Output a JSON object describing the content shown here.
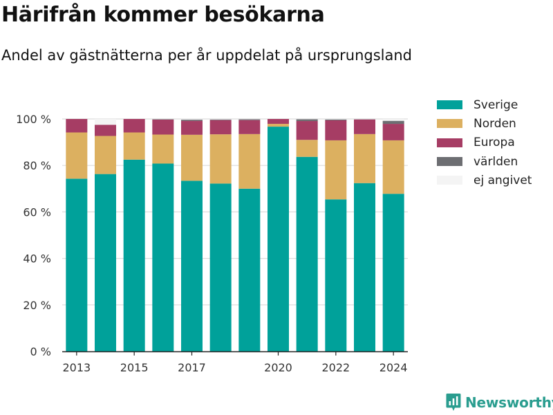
{
  "header": {
    "title": "Härifrån kommer besökarna",
    "subtitle": "Andel av gästnätterna per år uppdelat på ursprungsland"
  },
  "brand": {
    "name": "Newsworthy",
    "icon": "newsworthy-logo-icon",
    "color": "#2a9d8f"
  },
  "chart_data": {
    "type": "bar",
    "stacked": true,
    "categories": [
      "2013",
      "2014",
      "2015",
      "2016",
      "2017",
      "2018",
      "2019",
      "2020",
      "2021",
      "2022",
      "2023",
      "2024"
    ],
    "x_tick_labels": [
      "2013",
      "2015",
      "2017",
      "2020",
      "2022",
      "2024"
    ],
    "series": [
      {
        "name": "Sverige",
        "color": "#00a19a",
        "values": [
          74.3,
          76.3,
          82.5,
          80.8,
          73.4,
          72.2,
          70.0,
          96.7,
          83.7,
          65.4,
          72.4,
          67.8
        ]
      },
      {
        "name": "Norden",
        "color": "#dcb060",
        "values": [
          19.9,
          16.4,
          11.7,
          12.5,
          19.8,
          21.2,
          23.5,
          1.2,
          7.3,
          25.4,
          21.1,
          23.0
        ]
      },
      {
        "name": "Europa",
        "color": "#a63d64",
        "values": [
          5.8,
          4.8,
          5.8,
          6.4,
          6.0,
          6.1,
          6.0,
          2.1,
          8.1,
          8.6,
          6.3,
          7.1
        ]
      },
      {
        "name": "världen",
        "color": "#6d6e72",
        "values": [
          0.0,
          0.0,
          0.0,
          0.2,
          0.5,
          0.3,
          0.4,
          0.0,
          0.8,
          0.4,
          0.1,
          1.3
        ]
      },
      {
        "name": "ej angivet",
        "color": "#f4f4f4",
        "values": [
          0.0,
          2.5,
          0.0,
          0.1,
          0.3,
          0.2,
          0.1,
          0.0,
          0.1,
          0.2,
          0.1,
          0.8
        ]
      }
    ],
    "ylim": [
      0,
      100
    ],
    "y_ticks": [
      0,
      20,
      40,
      60,
      80,
      100
    ],
    "y_tick_labels": [
      "0 %",
      "20 %",
      "40 %",
      "60 %",
      "80 %",
      "100 %"
    ],
    "xlabel": "",
    "ylabel": "",
    "grid": true,
    "legend_position": "right"
  }
}
